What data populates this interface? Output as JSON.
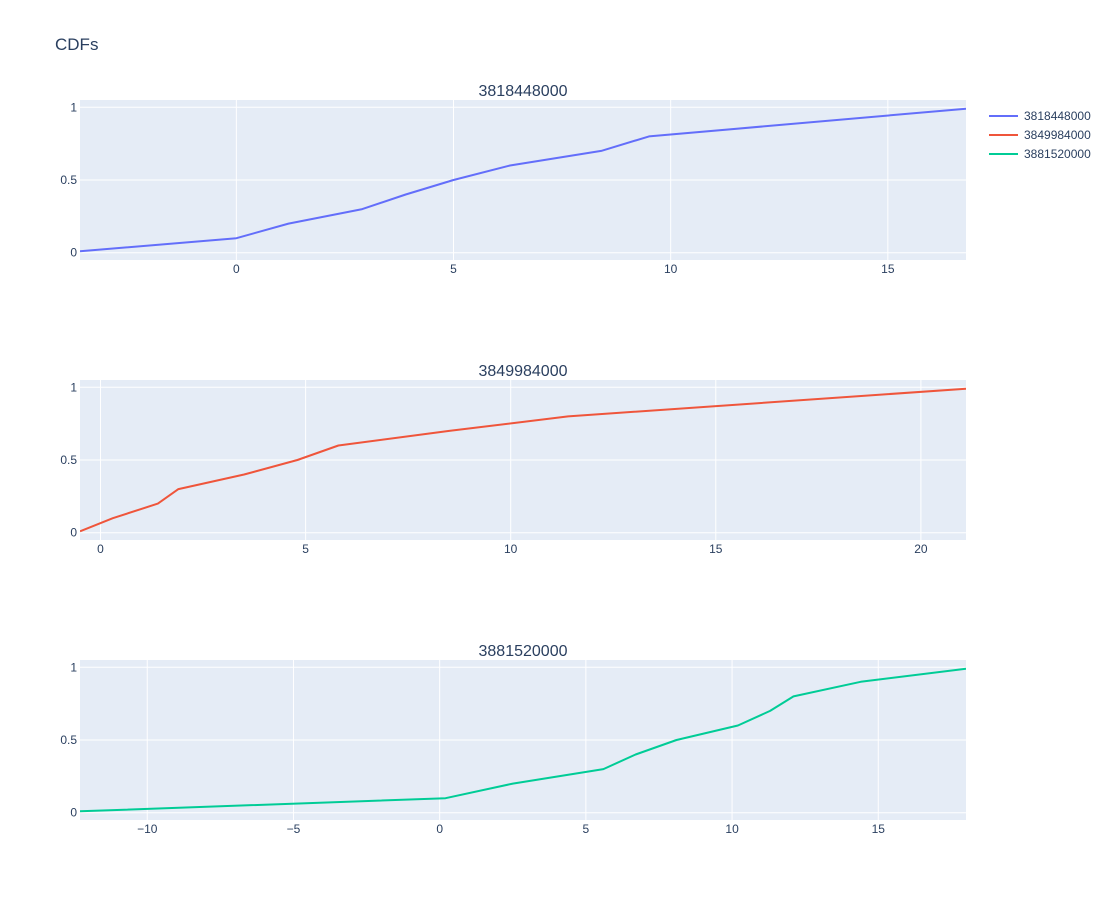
{
  "title": "CDFs",
  "chart_data": [
    {
      "type": "line",
      "title": "3818448000",
      "series": [
        {
          "name": "3818448000",
          "x": [
            -3.6,
            0,
            1.2,
            2.9,
            3.9,
            5.0,
            6.3,
            8.4,
            9.5,
            16.8
          ],
          "y": [
            0.01,
            0.1,
            0.2,
            0.3,
            0.4,
            0.5,
            0.6,
            0.7,
            0.8,
            0.99
          ]
        }
      ],
      "xlim": [
        -3.6,
        16.8
      ],
      "ylim": [
        -0.05,
        1.05
      ],
      "xticks": [
        0,
        5,
        10,
        15
      ],
      "xtick_labels": [
        "0",
        "5",
        "10",
        "15"
      ],
      "yticks": [
        0,
        0.5,
        1
      ],
      "ytick_labels": [
        "0",
        "0.5",
        "1"
      ]
    },
    {
      "type": "line",
      "title": "3849984000",
      "series": [
        {
          "name": "3849984000",
          "x": [
            -0.5,
            0.3,
            1.4,
            1.9,
            3.5,
            4.8,
            5.8,
            8.5,
            11.4,
            21.1
          ],
          "y": [
            0.01,
            0.1,
            0.2,
            0.3,
            0.4,
            0.5,
            0.6,
            0.7,
            0.8,
            0.99
          ]
        }
      ],
      "xlim": [
        -0.5,
        21.1
      ],
      "ylim": [
        -0.05,
        1.05
      ],
      "xticks": [
        0,
        5,
        10,
        15,
        20
      ],
      "xtick_labels": [
        "0",
        "5",
        "10",
        "15",
        "20"
      ],
      "yticks": [
        0,
        0.5,
        1
      ],
      "ytick_labels": [
        "0",
        "0.5",
        "1"
      ]
    },
    {
      "type": "line",
      "title": "3881520000",
      "series": [
        {
          "name": "3881520000",
          "x": [
            -12.3,
            0.2,
            2.5,
            5.6,
            6.7,
            8.1,
            10.2,
            11.3,
            12.1,
            14.4,
            18.0
          ],
          "y": [
            0.01,
            0.1,
            0.2,
            0.3,
            0.4,
            0.5,
            0.6,
            0.7,
            0.8,
            0.9,
            0.99
          ]
        }
      ],
      "xlim": [
        -12.3,
        18.0
      ],
      "ylim": [
        -0.05,
        1.05
      ],
      "xticks": [
        -10,
        -5,
        0,
        5,
        10,
        15
      ],
      "xtick_labels": [
        "−10",
        "−5",
        "0",
        "5",
        "10",
        "15"
      ],
      "yticks": [
        0,
        0.5,
        1
      ],
      "ytick_labels": [
        "0",
        "0.5",
        "1"
      ]
    }
  ],
  "legend": {
    "placement": "top-right",
    "items": [
      {
        "label": "3818448000",
        "color": "#636efa"
      },
      {
        "label": "3849984000",
        "color": "#ef553b"
      },
      {
        "label": "3881520000",
        "color": "#00cc96"
      }
    ]
  },
  "colors": {
    "plot_bg": "#e5ecf6",
    "grid": "#ffffff",
    "text": "#2a3f5f"
  }
}
